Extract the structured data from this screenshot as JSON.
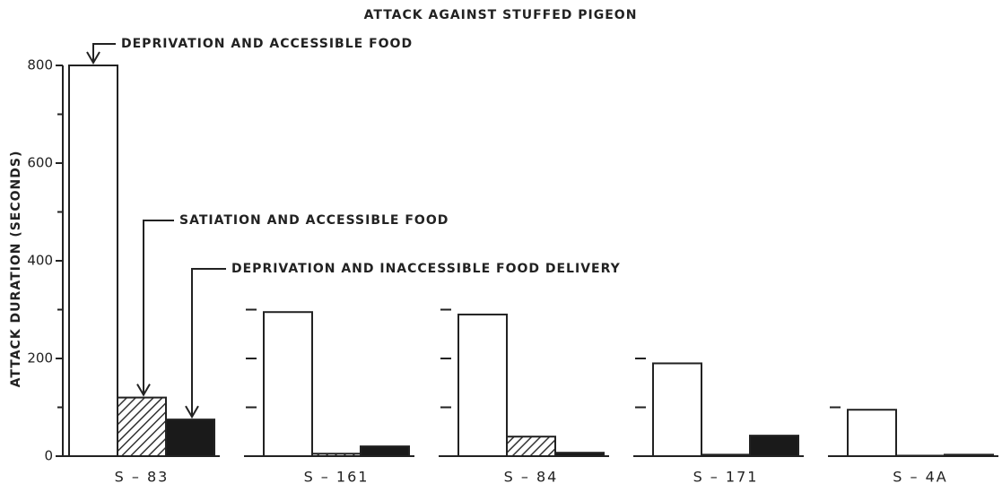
{
  "chart_data": {
    "type": "bar",
    "title": "ATTACK AGAINST STUFFED PIGEON",
    "y_label": "ATTACK DURATION (SECONDS)",
    "categories": [
      "S – 83",
      "S – 161",
      "S – 84",
      "S – 171",
      "S – 4A"
    ],
    "series": [
      {
        "name": "DEPRIVATION AND ACCESSIBLE FOOD",
        "color": "#ffffff",
        "values": [
          800,
          295,
          290,
          190,
          95
        ]
      },
      {
        "name": "SATIATION AND ACCESSIBLE FOOD",
        "color": "#444444",
        "pattern": "hatch",
        "values": [
          120,
          5,
          40,
          3,
          1
        ]
      },
      {
        "name": "DEPRIVATION AND INACCESSIBLE FOOD DELIVERY",
        "color": "#1a1a1a",
        "values": [
          75,
          20,
          7,
          42,
          3
        ]
      }
    ],
    "ylim": [
      0,
      800
    ],
    "yticks": [
      0,
      200,
      400,
      600,
      800
    ],
    "minor_yticks": [
      100,
      300,
      500,
      700
    ]
  }
}
